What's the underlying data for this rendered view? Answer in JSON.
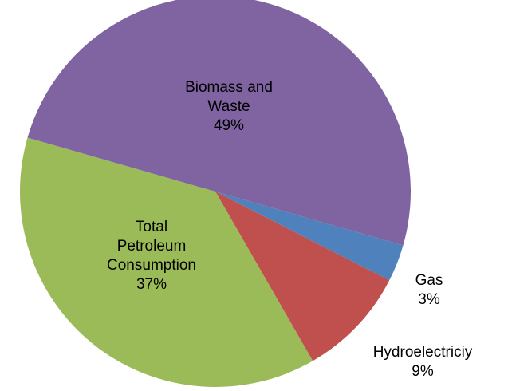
{
  "chart_data": {
    "type": "pie",
    "categories": [
      "Gas",
      "Hydroelectriciy",
      "Total Petroleum Consumption",
      "Biomass and Waste"
    ],
    "values": [
      3,
      9,
      37,
      49
    ],
    "value_labels": [
      "3%",
      "9%",
      "37%",
      "49%"
    ],
    "colors": [
      "#4f81bd",
      "#c0504d",
      "#9bbb59",
      "#8064a2"
    ]
  }
}
